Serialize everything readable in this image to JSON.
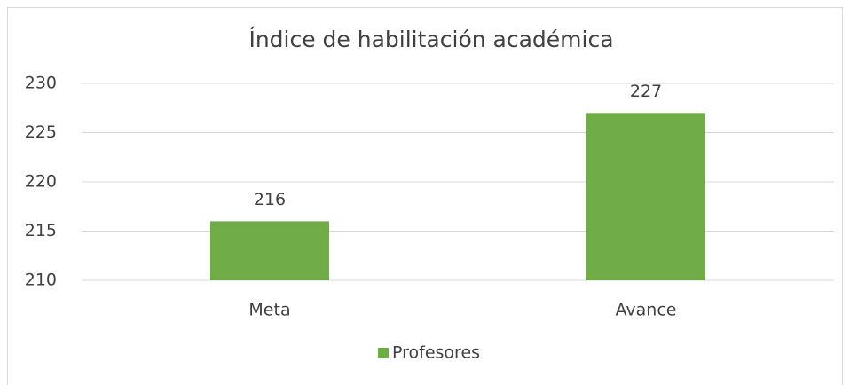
{
  "chart_data": {
    "type": "bar",
    "title": "Índice de habilitación académica",
    "categories": [
      "Meta",
      "Avance"
    ],
    "series": [
      {
        "name": "Profesores",
        "color": "#70ad47",
        "values": [
          216,
          227
        ]
      }
    ],
    "ylim": [
      210,
      230
    ],
    "yticks": [
      210,
      215,
      220,
      225,
      230
    ],
    "grid": true,
    "legend": "bottom"
  }
}
